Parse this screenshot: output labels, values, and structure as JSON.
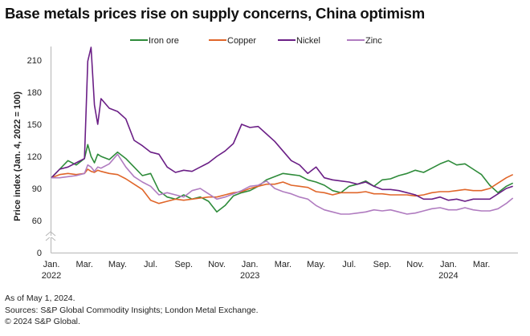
{
  "title": "Base metals prices rise on supply concerns, China optimism",
  "footer": {
    "as_of": "As of May 1, 2024.",
    "sources": "Sources: S&P Global Commodity Insights; London Metal Exchange.",
    "copyright": "© 2024 S&P Global."
  },
  "chart_data": {
    "type": "line",
    "title": "Base metals prices rise on supply concerns, China optimism",
    "xlabel": "",
    "ylabel": "Price index (Jan. 4, 2022 = 100)",
    "y_ticks": [
      0,
      60,
      90,
      120,
      150,
      180,
      210
    ],
    "ylim": [
      0,
      220
    ],
    "y_axis_break": [
      0,
      60
    ],
    "x_ticks": [
      {
        "label": "Jan.",
        "sub": "2022",
        "month_offset": 0
      },
      {
        "label": "Mar.",
        "sub": "",
        "month_offset": 2
      },
      {
        "label": "May.",
        "sub": "",
        "month_offset": 4
      },
      {
        "label": "Jul.",
        "sub": "",
        "month_offset": 6
      },
      {
        "label": "Sep.",
        "sub": "",
        "month_offset": 8
      },
      {
        "label": "Nov.",
        "sub": "",
        "month_offset": 10
      },
      {
        "label": "Jan.",
        "sub": "2023",
        "month_offset": 12
      },
      {
        "label": "Mar.",
        "sub": "",
        "month_offset": 14
      },
      {
        "label": "May.",
        "sub": "",
        "month_offset": 16
      },
      {
        "label": "Jul.",
        "sub": "",
        "month_offset": 18
      },
      {
        "label": "Sep.",
        "sub": "",
        "month_offset": 20
      },
      {
        "label": "Nov.",
        "sub": "",
        "month_offset": 22
      },
      {
        "label": "Jan.",
        "sub": "2024",
        "month_offset": 24
      },
      {
        "label": "Mar.",
        "sub": "",
        "month_offset": 26
      }
    ],
    "x_unit": "months since Jan. 4, 2022",
    "x": [
      0,
      0.5,
      1,
      1.5,
      2,
      2.2,
      2.4,
      2.6,
      2.8,
      3,
      3.5,
      4,
      4.5,
      5,
      5.5,
      6,
      6.5,
      7,
      7.5,
      8,
      8.5,
      9,
      9.5,
      10,
      10.5,
      11,
      11.5,
      12,
      12.5,
      13,
      13.5,
      14,
      14.5,
      15,
      15.5,
      16,
      16.5,
      17,
      17.5,
      18,
      18.5,
      19,
      19.5,
      20,
      20.5,
      21,
      21.5,
      22,
      22.5,
      23,
      23.5,
      24,
      24.5,
      25,
      25.5,
      26,
      26.5,
      27,
      27.5,
      27.9
    ],
    "grid": false,
    "legend": "top",
    "series": [
      {
        "name": "Iron ore",
        "color": "#2e8b3a",
        "values": [
          100,
          108,
          116,
          112,
          118,
          131,
          120,
          114,
          122,
          120,
          117,
          124,
          118,
          110,
          102,
          104,
          88,
          82,
          80,
          84,
          80,
          82,
          78,
          68,
          74,
          83,
          86,
          88,
          92,
          98,
          101,
          104,
          103,
          102,
          98,
          96,
          93,
          88,
          86,
          92,
          94,
          97,
          92,
          98,
          99,
          102,
          104,
          107,
          105,
          109,
          113,
          116,
          112,
          113,
          108,
          103,
          93,
          86,
          92,
          95
        ]
      },
      {
        "name": "Copper",
        "color": "#e0662a",
        "values": [
          100,
          103,
          104,
          103,
          104,
          108,
          106,
          105,
          107,
          106,
          104,
          103,
          99,
          94,
          89,
          79,
          76,
          78,
          80,
          79,
          80,
          81,
          82,
          82,
          84,
          86,
          87,
          90,
          92,
          94,
          94,
          96,
          93,
          92,
          91,
          87,
          86,
          84,
          86,
          86,
          86,
          87,
          85,
          85,
          84,
          84,
          84,
          83,
          84,
          86,
          87,
          87,
          88,
          89,
          88,
          88,
          90,
          95,
          100,
          103
        ]
      },
      {
        "name": "Nickel",
        "color": "#6b1f86",
        "values": [
          100,
          108,
          110,
          114,
          118,
          209,
          222,
          168,
          150,
          174,
          165,
          162,
          155,
          135,
          130,
          124,
          122,
          110,
          105,
          107,
          106,
          110,
          114,
          120,
          125,
          132,
          150,
          147,
          148,
          141,
          134,
          125,
          116,
          112,
          104,
          110,
          100,
          98,
          97,
          96,
          94,
          96,
          92,
          89,
          89,
          88,
          86,
          84,
          80,
          80,
          82,
          79,
          80,
          78,
          80,
          80,
          80,
          85,
          90,
          92
        ]
      },
      {
        "name": "Zinc",
        "color": "#b07cc0",
        "values": [
          100,
          100,
          101,
          102,
          104,
          112,
          110,
          106,
          110,
          109,
          113,
          122,
          110,
          101,
          96,
          92,
          84,
          86,
          84,
          82,
          88,
          90,
          85,
          80,
          82,
          85,
          88,
          92,
          93,
          97,
          90,
          87,
          85,
          82,
          80,
          74,
          70,
          68,
          66,
          66,
          67,
          68,
          70,
          69,
          70,
          68,
          66,
          67,
          69,
          71,
          72,
          70,
          70,
          72,
          70,
          69,
          69,
          71,
          76,
          81
        ]
      }
    ]
  }
}
